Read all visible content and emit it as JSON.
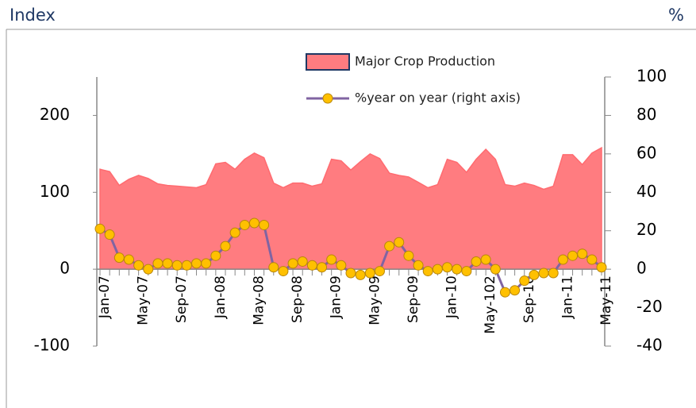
{
  "chart_data": {
    "type": "area-line",
    "y_label": "Index",
    "y2_label": "%",
    "categories": [
      "Jan-07",
      null,
      null,
      null,
      "May-07",
      null,
      null,
      null,
      "Sep-07",
      null,
      null,
      null,
      "Jan-08",
      null,
      null,
      null,
      "May-08",
      null,
      null,
      null,
      "Sep-08",
      null,
      null,
      null,
      "Jan-09",
      null,
      null,
      null,
      "May-09",
      null,
      null,
      null,
      "Sep-09",
      null,
      null,
      null,
      "Jan-10",
      null,
      null,
      null,
      "May-102",
      null,
      null,
      null,
      "Sep-10",
      null,
      null,
      null,
      "Jan-11",
      null,
      null,
      null,
      "May-11"
    ],
    "series": [
      {
        "name": "Major Crop Production",
        "color": "#ff7c80",
        "axis": "y",
        "values": [
          130,
          127,
          109,
          117,
          122,
          118,
          111,
          109,
          108,
          107,
          106,
          110,
          137,
          139,
          130,
          143,
          151,
          145,
          112,
          106,
          112,
          112,
          108,
          111,
          143,
          141,
          129,
          140,
          150,
          144,
          125,
          122,
          120,
          113,
          106,
          110,
          143,
          139,
          126,
          143,
          156,
          143,
          110,
          108,
          112,
          109,
          104,
          108,
          149,
          149,
          136,
          151,
          158
        ]
      },
      {
        "name": "%year on year (right axis)",
        "color": "#8064a2",
        "marker_color": "#ffc000",
        "axis": "y2",
        "values": [
          21,
          18,
          6,
          5,
          2,
          0,
          3,
          3,
          2,
          2,
          3,
          3,
          7,
          12,
          19,
          23,
          24,
          23,
          1,
          -1,
          3,
          4,
          2,
          1,
          5,
          2,
          -2,
          -3,
          -2,
          -1,
          12,
          14,
          7,
          2,
          -1,
          0,
          1,
          0,
          -1,
          4,
          5,
          0,
          -12,
          -11,
          -6,
          -3,
          -2,
          -2,
          5,
          7,
          8,
          5,
          1
        ]
      }
    ],
    "ylim": [
      -100,
      250
    ],
    "yticks": [
      -100,
      0,
      100,
      200
    ],
    "y2lim": [
      -40,
      100
    ],
    "y2ticks": [
      -40,
      -20,
      0,
      20,
      40,
      60,
      80,
      100
    ]
  }
}
